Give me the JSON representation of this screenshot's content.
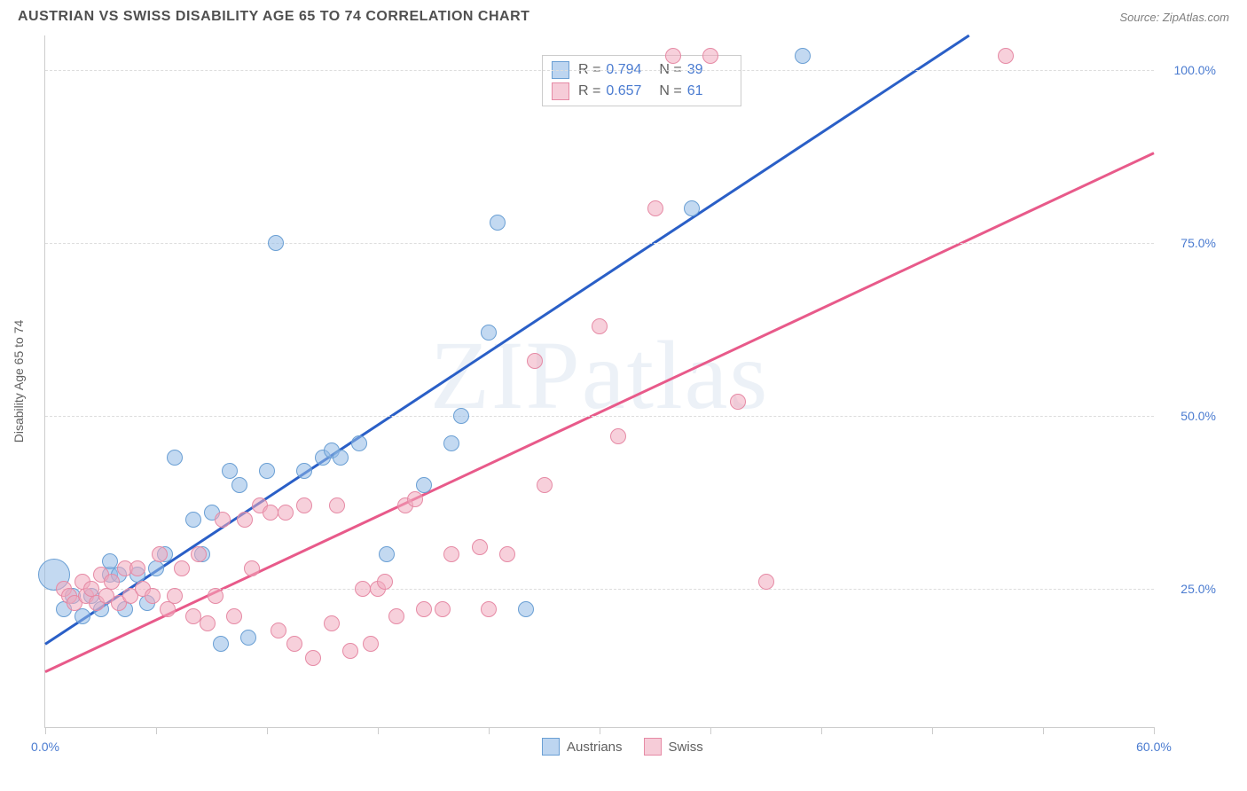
{
  "header": {
    "title": "AUSTRIAN VS SWISS DISABILITY AGE 65 TO 74 CORRELATION CHART",
    "source": "Source: ZipAtlas.com"
  },
  "watermark": "ZIPatlas",
  "chart": {
    "type": "scatter",
    "ylabel": "Disability Age 65 to 74",
    "xlim": [
      0,
      60
    ],
    "ylim": [
      5,
      105
    ],
    "x_ticks": [
      0,
      6,
      12,
      18,
      24,
      30,
      36,
      42,
      48,
      54,
      60
    ],
    "x_tick_labels": {
      "0": "0.0%",
      "60": "60.0%"
    },
    "y_grid": [
      25,
      50,
      75,
      100
    ],
    "y_tick_labels": {
      "25": "25.0%",
      "50": "50.0%",
      "75": "75.0%",
      "100": "100.0%"
    },
    "background_color": "#ffffff",
    "grid_color": "#dddddd",
    "axis_color": "#cccccc",
    "tick_label_color": "#4a7bd0",
    "axis_label_color": "#606060",
    "marker_size_default": 16,
    "series": [
      {
        "name": "Austrians",
        "color_fill": "rgba(145,185,230,0.55)",
        "color_stroke": "#6a9fd4",
        "trend_color": "#2a5fc7",
        "trend_width": 3,
        "trend": {
          "x1": 0,
          "y1": 17,
          "x2": 50,
          "y2": 105
        },
        "stats": {
          "R": "0.794",
          "N": "39"
        },
        "points": [
          {
            "x": 0.5,
            "y": 27,
            "size": 34
          },
          {
            "x": 1.0,
            "y": 22
          },
          {
            "x": 1.5,
            "y": 24
          },
          {
            "x": 2.0,
            "y": 21
          },
          {
            "x": 2.5,
            "y": 24
          },
          {
            "x": 3.0,
            "y": 22
          },
          {
            "x": 3.5,
            "y": 27
          },
          {
            "x": 3.5,
            "y": 29
          },
          {
            "x": 4.0,
            "y": 27
          },
          {
            "x": 4.3,
            "y": 22
          },
          {
            "x": 5.0,
            "y": 27
          },
          {
            "x": 5.5,
            "y": 23
          },
          {
            "x": 6.0,
            "y": 28
          },
          {
            "x": 6.5,
            "y": 30
          },
          {
            "x": 7.0,
            "y": 44
          },
          {
            "x": 8.0,
            "y": 35
          },
          {
            "x": 8.5,
            "y": 30
          },
          {
            "x": 9.0,
            "y": 36
          },
          {
            "x": 9.5,
            "y": 17
          },
          {
            "x": 10.0,
            "y": 42
          },
          {
            "x": 10.5,
            "y": 40
          },
          {
            "x": 11.0,
            "y": 18
          },
          {
            "x": 12.0,
            "y": 42
          },
          {
            "x": 12.5,
            "y": 75
          },
          {
            "x": 14.0,
            "y": 42
          },
          {
            "x": 15.0,
            "y": 44
          },
          {
            "x": 15.5,
            "y": 45
          },
          {
            "x": 16.0,
            "y": 44
          },
          {
            "x": 17.0,
            "y": 46
          },
          {
            "x": 18.5,
            "y": 30
          },
          {
            "x": 20.5,
            "y": 40
          },
          {
            "x": 22.0,
            "y": 46
          },
          {
            "x": 22.5,
            "y": 50
          },
          {
            "x": 24.0,
            "y": 62
          },
          {
            "x": 24.5,
            "y": 78
          },
          {
            "x": 26.0,
            "y": 22
          },
          {
            "x": 35.0,
            "y": 80
          },
          {
            "x": 41.0,
            "y": 102
          }
        ]
      },
      {
        "name": "Swiss",
        "color_fill": "rgba(240,170,190,0.55)",
        "color_stroke": "#e68aa5",
        "trend_color": "#e85a8a",
        "trend_width": 3,
        "trend": {
          "x1": 0,
          "y1": 13,
          "x2": 60,
          "y2": 88
        },
        "stats": {
          "R": "0.657",
          "N": "61"
        },
        "points": [
          {
            "x": 1.0,
            "y": 25
          },
          {
            "x": 1.3,
            "y": 24
          },
          {
            "x": 1.6,
            "y": 23
          },
          {
            "x": 2.0,
            "y": 26
          },
          {
            "x": 2.2,
            "y": 24
          },
          {
            "x": 2.5,
            "y": 25
          },
          {
            "x": 2.8,
            "y": 23
          },
          {
            "x": 3.0,
            "y": 27
          },
          {
            "x": 3.3,
            "y": 24
          },
          {
            "x": 3.6,
            "y": 26
          },
          {
            "x": 4.0,
            "y": 23
          },
          {
            "x": 4.3,
            "y": 28
          },
          {
            "x": 4.6,
            "y": 24
          },
          {
            "x": 5.0,
            "y": 28
          },
          {
            "x": 5.3,
            "y": 25
          },
          {
            "x": 5.8,
            "y": 24
          },
          {
            "x": 6.2,
            "y": 30
          },
          {
            "x": 6.6,
            "y": 22
          },
          {
            "x": 7.0,
            "y": 24
          },
          {
            "x": 7.4,
            "y": 28
          },
          {
            "x": 8.0,
            "y": 21
          },
          {
            "x": 8.3,
            "y": 30
          },
          {
            "x": 8.8,
            "y": 20
          },
          {
            "x": 9.2,
            "y": 24
          },
          {
            "x": 9.6,
            "y": 35
          },
          {
            "x": 10.2,
            "y": 21
          },
          {
            "x": 10.8,
            "y": 35
          },
          {
            "x": 11.2,
            "y": 28
          },
          {
            "x": 11.6,
            "y": 37
          },
          {
            "x": 12.2,
            "y": 36
          },
          {
            "x": 12.6,
            "y": 19
          },
          {
            "x": 13.0,
            "y": 36
          },
          {
            "x": 13.5,
            "y": 17
          },
          {
            "x": 14.0,
            "y": 37
          },
          {
            "x": 14.5,
            "y": 15
          },
          {
            "x": 15.5,
            "y": 20
          },
          {
            "x": 15.8,
            "y": 37
          },
          {
            "x": 16.5,
            "y": 16
          },
          {
            "x": 17.2,
            "y": 25
          },
          {
            "x": 17.6,
            "y": 17
          },
          {
            "x": 18.0,
            "y": 25
          },
          {
            "x": 18.4,
            "y": 26
          },
          {
            "x": 19.0,
            "y": 21
          },
          {
            "x": 19.5,
            "y": 37
          },
          {
            "x": 20.0,
            "y": 38
          },
          {
            "x": 20.5,
            "y": 22
          },
          {
            "x": 21.5,
            "y": 22
          },
          {
            "x": 22.0,
            "y": 30
          },
          {
            "x": 23.5,
            "y": 31
          },
          {
            "x": 24.0,
            "y": 22
          },
          {
            "x": 25.0,
            "y": 30
          },
          {
            "x": 26.5,
            "y": 58
          },
          {
            "x": 27.0,
            "y": 40
          },
          {
            "x": 30.0,
            "y": 63
          },
          {
            "x": 31.0,
            "y": 47
          },
          {
            "x": 33.0,
            "y": 80
          },
          {
            "x": 34.0,
            "y": 102
          },
          {
            "x": 36.0,
            "y": 102
          },
          {
            "x": 37.5,
            "y": 52
          },
          {
            "x": 39.0,
            "y": 26
          },
          {
            "x": 52.0,
            "y": 102
          }
        ]
      }
    ]
  },
  "legend_top": {
    "R_label": "R =",
    "N_label": "N ="
  },
  "legend_bottom": [
    {
      "swatch": "blue",
      "label": "Austrians"
    },
    {
      "swatch": "pink",
      "label": "Swiss"
    }
  ]
}
